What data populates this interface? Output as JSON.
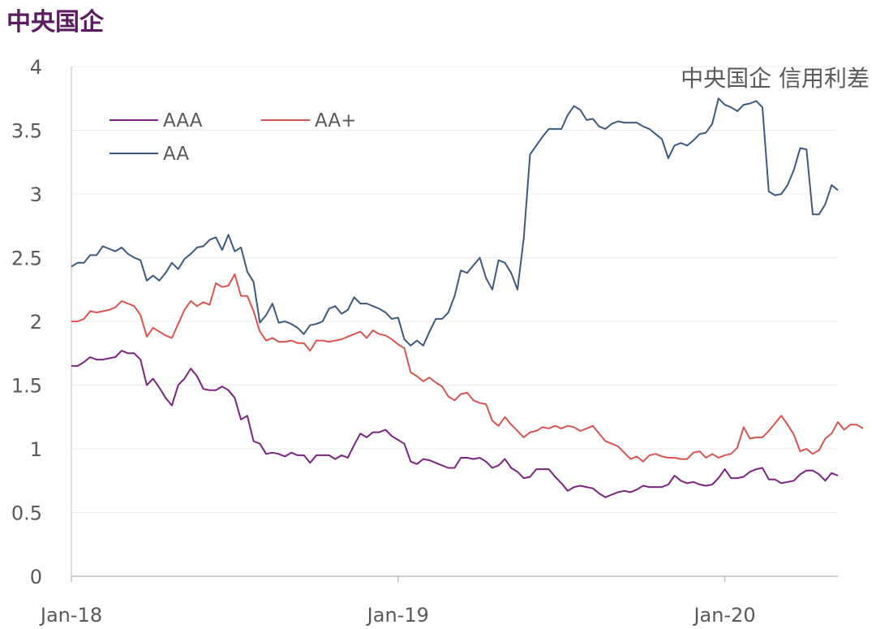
{
  "header": {
    "title": "中央国企"
  },
  "chart_data": {
    "type": "line",
    "title": "中央国企 信用利差",
    "xlabel": "",
    "ylabel": "",
    "ylim": [
      0,
      4
    ],
    "yticks": [
      "0",
      "0.5",
      "1",
      "1.5",
      "2",
      "2.5",
      "3",
      "3.5",
      "4"
    ],
    "x_start": "Jan-18",
    "x_ticks": [
      "Jan-18",
      "Jan-19",
      "Jan-20"
    ],
    "x_range_weeks": [
      0,
      122
    ],
    "x_tick_weeks": [
      0,
      52,
      104
    ],
    "grid": "horizontal",
    "legend": "top-left",
    "series": [
      {
        "name": "AAA",
        "color": "#7b2382",
        "values": [
          1.65,
          1.65,
          1.68,
          1.72,
          1.7,
          1.7,
          1.71,
          1.72,
          1.77,
          1.75,
          1.75,
          1.7,
          1.5,
          1.55,
          1.48,
          1.4,
          1.34,
          1.5,
          1.55,
          1.63,
          1.57,
          1.47,
          1.46,
          1.46,
          1.49,
          1.46,
          1.4,
          1.23,
          1.26,
          1.06,
          1.04,
          0.96,
          0.97,
          0.96,
          0.94,
          0.97,
          0.95,
          0.95,
          0.89,
          0.95,
          0.95,
          0.95,
          0.92,
          0.95,
          0.93,
          1.03,
          1.12,
          1.09,
          1.13,
          1.13,
          1.15,
          1.1,
          1.07,
          1.04,
          0.9,
          0.88,
          0.92,
          0.91,
          0.89,
          0.87,
          0.85,
          0.85,
          0.93,
          0.93,
          0.92,
          0.93,
          0.9,
          0.85,
          0.87,
          0.92,
          0.85,
          0.82,
          0.77,
          0.78,
          0.84,
          0.84,
          0.84,
          0.78,
          0.73,
          0.67,
          0.7,
          0.71,
          0.7,
          0.69,
          0.65,
          0.62,
          0.64,
          0.66,
          0.67,
          0.66,
          0.68,
          0.71,
          0.7,
          0.7,
          0.7,
          0.72,
          0.79,
          0.75,
          0.73,
          0.74,
          0.72,
          0.71,
          0.72,
          0.77,
          0.84,
          0.77,
          0.77,
          0.78,
          0.82,
          0.84,
          0.85,
          0.76,
          0.76,
          0.73,
          0.74,
          0.75,
          0.8,
          0.83,
          0.83,
          0.8,
          0.75,
          0.81,
          0.79
        ]
      },
      {
        "name": "AA+",
        "color": "#d9534f",
        "values": [
          2.0,
          2.0,
          2.02,
          2.08,
          2.07,
          2.08,
          2.09,
          2.11,
          2.16,
          2.14,
          2.12,
          2.05,
          1.88,
          1.95,
          1.92,
          1.89,
          1.87,
          1.98,
          2.09,
          2.16,
          2.12,
          2.15,
          2.13,
          2.3,
          2.27,
          2.28,
          2.37,
          2.2,
          2.2,
          2.08,
          1.92,
          1.85,
          1.87,
          1.84,
          1.84,
          1.85,
          1.83,
          1.83,
          1.77,
          1.85,
          1.85,
          1.84,
          1.85,
          1.86,
          1.88,
          1.9,
          1.92,
          1.87,
          1.93,
          1.9,
          1.89,
          1.86,
          1.82,
          1.79,
          1.6,
          1.57,
          1.53,
          1.56,
          1.52,
          1.49,
          1.41,
          1.38,
          1.43,
          1.44,
          1.38,
          1.36,
          1.35,
          1.22,
          1.18,
          1.25,
          1.19,
          1.14,
          1.09,
          1.13,
          1.14,
          1.17,
          1.16,
          1.18,
          1.16,
          1.18,
          1.17,
          1.14,
          1.16,
          1.18,
          1.12,
          1.06,
          1.04,
          1.02,
          0.97,
          0.92,
          0.94,
          0.9,
          0.95,
          0.96,
          0.94,
          0.93,
          0.93,
          0.92,
          0.92,
          0.97,
          0.98,
          0.93,
          0.96,
          0.93,
          0.95,
          0.96,
          1.01,
          1.17,
          1.08,
          1.09,
          1.09,
          1.14,
          1.2,
          1.26,
          1.19,
          1.11,
          0.98,
          1.0,
          0.96,
          0.99,
          1.08,
          1.12,
          1.21,
          1.15,
          1.19,
          1.19,
          1.16
        ]
      },
      {
        "name": "AA",
        "color": "#3b5a7e",
        "values": [
          2.43,
          2.46,
          2.46,
          2.52,
          2.52,
          2.59,
          2.57,
          2.55,
          2.58,
          2.53,
          2.5,
          2.48,
          2.32,
          2.36,
          2.32,
          2.38,
          2.46,
          2.41,
          2.49,
          2.53,
          2.58,
          2.59,
          2.64,
          2.66,
          2.56,
          2.68,
          2.55,
          2.58,
          2.39,
          2.31,
          1.99,
          2.05,
          2.14,
          1.99,
          2.0,
          1.98,
          1.95,
          1.9,
          1.97,
          1.98,
          2.0,
          2.1,
          2.12,
          2.06,
          2.09,
          2.19,
          2.14,
          2.14,
          2.12,
          2.1,
          2.07,
          2.02,
          2.03,
          1.86,
          1.81,
          1.85,
          1.81,
          1.92,
          2.02,
          2.02,
          2.07,
          2.2,
          2.4,
          2.38,
          2.44,
          2.5,
          2.34,
          2.25,
          2.48,
          2.46,
          2.38,
          2.25,
          2.65,
          3.31,
          3.38,
          3.45,
          3.51,
          3.51,
          3.51,
          3.62,
          3.69,
          3.66,
          3.58,
          3.59,
          3.53,
          3.51,
          3.55,
          3.57,
          3.56,
          3.56,
          3.56,
          3.53,
          3.51,
          3.47,
          3.43,
          3.28,
          3.38,
          3.4,
          3.38,
          3.42,
          3.47,
          3.48,
          3.55,
          3.75,
          3.7,
          3.68,
          3.65,
          3.7,
          3.71,
          3.73,
          3.68,
          3.02,
          2.99,
          3.0,
          3.07,
          3.19,
          3.36,
          3.35,
          2.84,
          2.84,
          2.92,
          3.07,
          3.03
        ]
      }
    ]
  }
}
